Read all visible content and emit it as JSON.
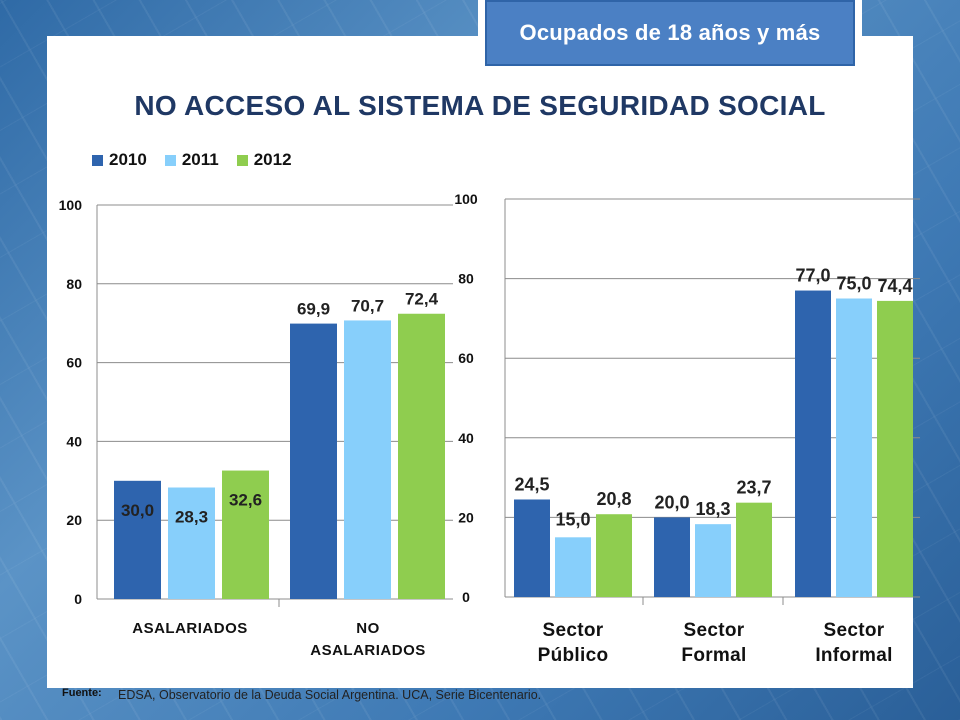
{
  "badge": "Ocupados de 18 años y más",
  "title": "NO ACCESO AL SISTEMA DE SEGURIDAD SOCIAL",
  "legend": [
    {
      "label": "2010",
      "color": "#2e64ae"
    },
    {
      "label": "2011",
      "color": "#87cffb"
    },
    {
      "label": "2012",
      "color": "#8fcd4f"
    }
  ],
  "chart_data": [
    {
      "type": "bar",
      "categories": [
        "ASALARIADOS",
        "NO ASALARIADOS"
      ],
      "series": [
        {
          "name": "2010",
          "values": [
            30.0,
            69.9
          ],
          "labels": [
            "30,0",
            "69,9"
          ]
        },
        {
          "name": "2011",
          "values": [
            28.3,
            70.7
          ],
          "labels": [
            "28,3",
            "70,7"
          ]
        },
        {
          "name": "2012",
          "values": [
            32.6,
            72.4
          ],
          "labels": [
            "32,6",
            "72,4"
          ]
        }
      ],
      "ylim": [
        0,
        100
      ],
      "yticks": [
        "0",
        "20",
        "40",
        "60",
        "80",
        "100"
      ],
      "grid": true
    },
    {
      "type": "bar",
      "categories": [
        "Sector Público",
        "Sector Formal",
        "Sector Informal"
      ],
      "series": [
        {
          "name": "2010",
          "values": [
            24.5,
            20.0,
            77.0
          ],
          "labels": [
            "24,5",
            "20,0",
            "77,0"
          ]
        },
        {
          "name": "2011",
          "values": [
            15.0,
            18.3,
            75.0
          ],
          "labels": [
            "15,0",
            "18,3",
            "75,0"
          ]
        },
        {
          "name": "2012",
          "values": [
            20.8,
            23.7,
            74.4
          ],
          "labels": [
            "20,8",
            "23,7",
            "74,4"
          ]
        }
      ],
      "ylim": [
        0,
        100
      ],
      "yticks": [
        "0",
        "20",
        "40",
        "60",
        "80",
        "100"
      ],
      "grid": true
    }
  ],
  "footer": {
    "fuente_label": "Fuente:",
    "source_text": "EDSA, Observatorio de la Deuda Social Argentina. UCA, Serie Bicentenario."
  }
}
